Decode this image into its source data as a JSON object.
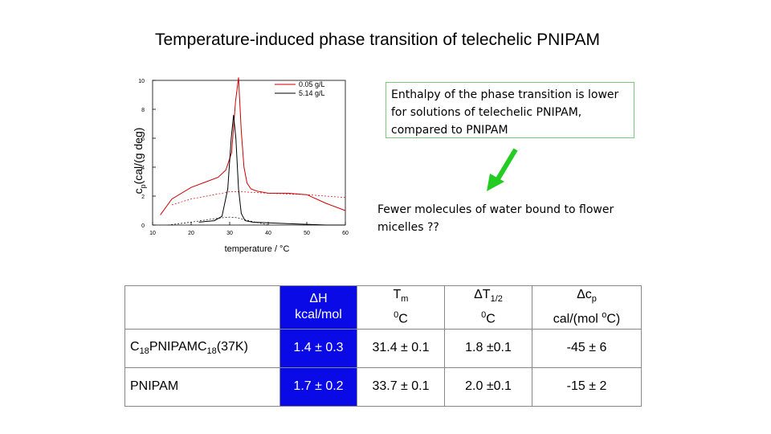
{
  "title": "Temperature-induced phase transition of telechelic PNIPAM",
  "callout": "Enthalpy of the phase transition is lower for solutions of telechelic PNIPAM, compared to PNIPAM",
  "note": "Fewer molecules of water bound to flower micelles ??",
  "colors": {
    "arrow": "#22cc22",
    "callout_border": "#7ec87e",
    "highlight": "#0a0ae6",
    "series_red": "#cc0000",
    "series_black": "#000000"
  },
  "chart_data": {
    "type": "line",
    "xlabel": "temperature / °C",
    "ylabel_main": "c",
    "ylabel_sub": "p",
    "ylabel_rest": "(cal/(g deg)",
    "xlim": [
      10,
      60
    ],
    "ylim": [
      0,
      10
    ],
    "xticks": [
      "10",
      "20",
      "30",
      "40",
      "50",
      "60"
    ],
    "yticks": [
      "0",
      "2",
      "4",
      "6",
      "8",
      "10"
    ],
    "legend_position": "top-right",
    "series": [
      {
        "name": "0.05 g/L",
        "color": "#cc0000",
        "style": "solid",
        "x": [
          12,
          15,
          20,
          24,
          27,
          29,
          30.5,
          31.5,
          32.3,
          33.0,
          33.7,
          34.5,
          35.5,
          37,
          40,
          45,
          50,
          55,
          60
        ],
        "y": [
          0.7,
          1.8,
          2.6,
          3.0,
          3.3,
          3.8,
          5.0,
          8.5,
          10.2,
          6.5,
          4.0,
          2.9,
          2.5,
          2.35,
          2.2,
          2.2,
          2.1,
          1.5,
          1.0
        ]
      },
      {
        "name": "0.05 g/L",
        "color": "#cc0000",
        "style": "dashed",
        "x": [
          15,
          20,
          26,
          30,
          33,
          40,
          50,
          60
        ],
        "y": [
          1.4,
          1.8,
          2.1,
          2.3,
          2.3,
          2.2,
          2.1,
          1.9
        ]
      },
      {
        "name": "5.14 g/L",
        "color": "#000000",
        "style": "solid",
        "x": [
          22,
          26,
          28,
          29.5,
          30.4,
          31.0,
          31.6,
          32.3,
          33.0,
          34.0,
          36,
          40,
          45,
          50,
          55,
          60
        ],
        "y": [
          0.2,
          0.3,
          0.6,
          2.5,
          6.0,
          7.6,
          6.0,
          2.5,
          0.8,
          0.3,
          0.2,
          0.15,
          0.1,
          0.05,
          0.0,
          0.0
        ]
      },
      {
        "name": "5.14 g/L",
        "color": "#000000",
        "style": "dashed",
        "x": [
          14,
          20,
          25,
          28,
          30,
          32,
          35,
          40
        ],
        "y": [
          0.0,
          0.2,
          0.4,
          0.5,
          0.55,
          0.5,
          0.3,
          0.0
        ]
      }
    ]
  },
  "table": {
    "header": {
      "h1_sym": "Δ",
      "h1_main": "H",
      "h1_unit": "kcal/mol",
      "h2_main": "T",
      "h2_sub": "m",
      "h2_sup": "0",
      "h2_unit": "C",
      "h3_sym": "Δ",
      "h3_main": "T",
      "h3_sub": "1/2",
      "h3_sup": "0",
      "h3_unit": "C",
      "h4_sym": "Δ",
      "h4_main": "c",
      "h4_sub": "p",
      "h4_unit_a": "cal/(mol ",
      "h4_sup": "o",
      "h4_unit_b": "C)"
    },
    "rows": [
      {
        "name_a": "C",
        "name_sub1": "18",
        "name_b": "PNIPAMC",
        "name_sub2": "18",
        "name_c": "(37K)",
        "dH": "1.4 ± 0.3",
        "Tm": "31.4 ± 0.1",
        "dT": "1.8 ±0.1",
        "dcp": "-45 ± 6"
      },
      {
        "name_a": "PNIPAM",
        "name_sub1": "",
        "name_b": "",
        "name_sub2": "",
        "name_c": "",
        "dH": "1.7 ± 0.2",
        "Tm": "33.7 ± 0.1",
        "dT": "2.0 ±0.1",
        "dcp": "-15 ± 2"
      }
    ]
  }
}
